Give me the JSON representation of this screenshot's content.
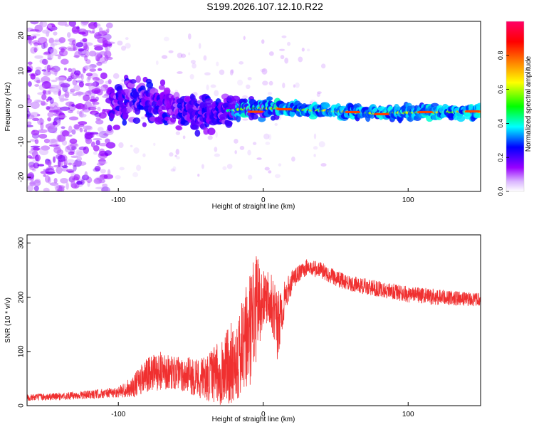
{
  "title": "S199.2026.107.12.10.R22",
  "chart_data": [
    {
      "type": "heatmap",
      "xlabel": "Height of straight line (km)",
      "ylabel": "Frequency (Hz)",
      "xlim": [
        -163,
        150
      ],
      "ylim": [
        -24,
        24
      ],
      "xticks": [
        -100,
        0,
        100
      ],
      "xtick_labels": [
        "-100",
        "0",
        "100"
      ],
      "yticks": [
        -20,
        -10,
        0,
        10,
        20
      ],
      "ytick_labels": [
        "-20",
        "-10",
        "0",
        "10",
        "20"
      ],
      "ridge": {
        "description_series": "dominant frequency track",
        "x": [
          -105,
          -90,
          -75,
          -60,
          -45,
          -30,
          -20,
          -10,
          0,
          15,
          40,
          60,
          80,
          100,
          120,
          150
        ],
        "y": [
          1,
          2,
          0.5,
          -1,
          -2,
          -1.5,
          -1,
          -0.5,
          -0.5,
          -0.8,
          -1.2,
          -1.6,
          -2,
          -1.7,
          -1.6,
          -1.5
        ]
      },
      "colorbar": {
        "label": "Normalized spectral amplitude",
        "range": [
          0,
          1
        ],
        "ticks": [
          0.0,
          0.2,
          0.4,
          0.6,
          0.8
        ],
        "tick_labels": [
          "0.0",
          "0.2",
          "0.4",
          "0.6",
          "0.8"
        ],
        "colors": [
          "#ffffff",
          "#9900ff",
          "#0000ff",
          "#00ffff",
          "#00ff00",
          "#ffff00",
          "#ff8000",
          "#ff0000",
          "#ff0066"
        ]
      }
    },
    {
      "type": "line",
      "color": "#f03030",
      "xlabel": "Height of straight line (km)",
      "ylabel": "SNR (10 * v/v)",
      "xlim": [
        -163,
        150
      ],
      "ylim": [
        0,
        315
      ],
      "xticks": [
        -100,
        0,
        100
      ],
      "xtick_labels": [
        "-100",
        "0",
        "100"
      ],
      "yticks": [
        0,
        100,
        200,
        300
      ],
      "ytick_labels": [
        "0",
        "100",
        "200",
        "300"
      ],
      "envelope": {
        "x": [
          -163,
          -140,
          -120,
          -100,
          -90,
          -80,
          -70,
          -60,
          -50,
          -40,
          -30,
          -20,
          -15,
          -10,
          -5,
          0,
          5,
          10,
          15,
          20,
          25,
          30,
          40,
          50,
          60,
          80,
          100,
          120,
          150
        ],
        "mean": [
          15,
          17,
          20,
          25,
          35,
          55,
          65,
          60,
          55,
          50,
          60,
          85,
          100,
          130,
          180,
          200,
          210,
          140,
          200,
          230,
          245,
          255,
          250,
          235,
          225,
          215,
          205,
          200,
          195
        ],
        "spread": [
          6,
          7,
          8,
          10,
          20,
          35,
          35,
          30,
          35,
          40,
          60,
          80,
          90,
          110,
          100,
          50,
          60,
          70,
          30,
          20,
          15,
          15,
          15,
          15,
          15,
          15,
          15,
          15,
          12
        ]
      }
    }
  ]
}
